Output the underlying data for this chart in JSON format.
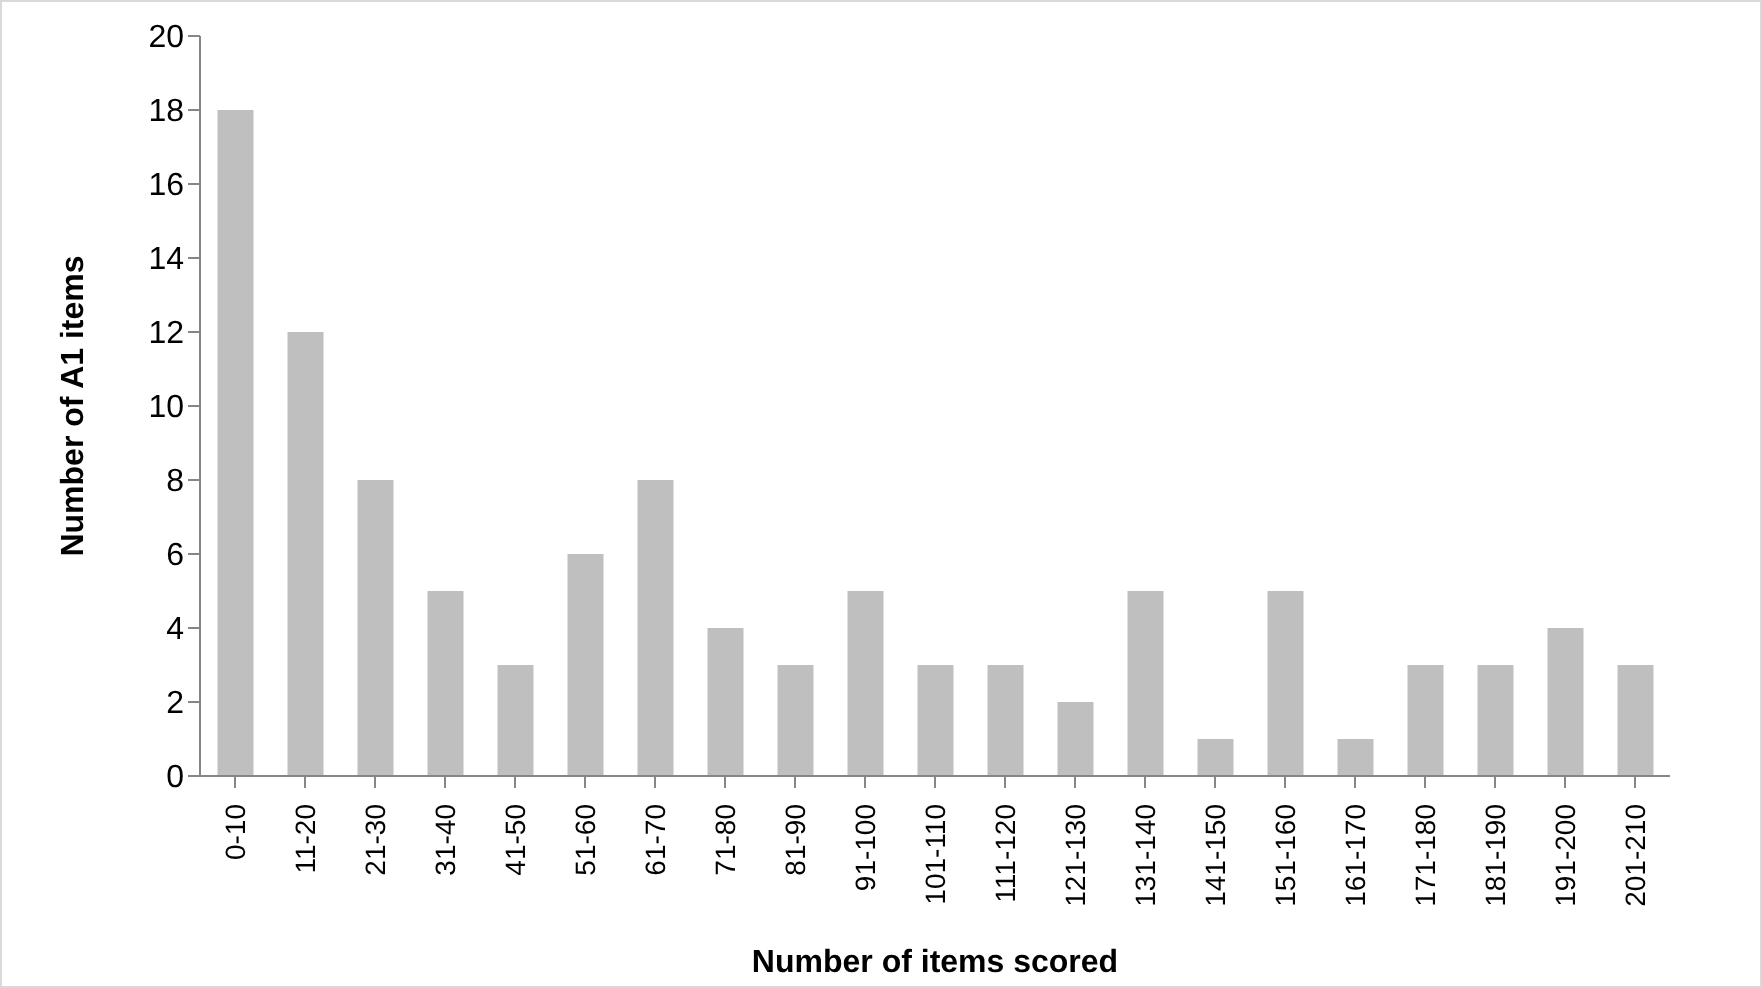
{
  "chart_data": {
    "type": "bar",
    "xlabel": "Number of items scored",
    "ylabel": "Number of A1 items",
    "categories": [
      "0-10",
      "11-20",
      "21-30",
      "31-40",
      "41-50",
      "51-60",
      "61-70",
      "71-80",
      "81-90",
      "91-100",
      "101-110",
      "111-120",
      "121-130",
      "131-140",
      "141-150",
      "151-160",
      "161-170",
      "171-180",
      "181-190",
      "191-200",
      "201-210"
    ],
    "values": [
      18,
      12,
      8,
      5,
      3,
      6,
      8,
      4,
      3,
      5,
      3,
      3,
      2,
      5,
      1,
      5,
      1,
      3,
      3,
      4,
      3
    ],
    "color": "#bfbfbf",
    "ylim": [
      0,
      20
    ],
    "yticks": [
      0,
      2,
      4,
      6,
      8,
      10,
      12,
      14,
      16,
      18,
      20
    ],
    "grid": false,
    "legend": false
  }
}
